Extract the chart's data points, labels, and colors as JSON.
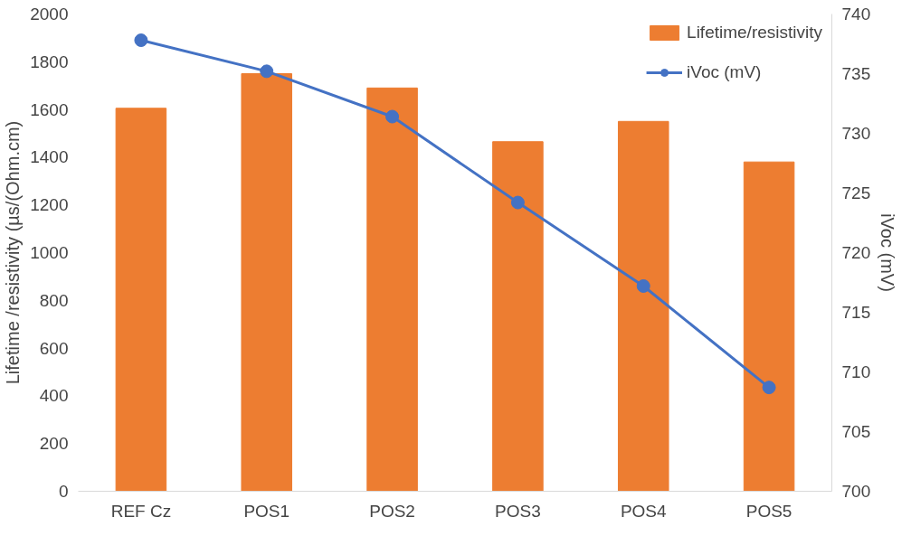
{
  "chart_data": {
    "type": "bar",
    "categories": [
      "REF Cz",
      "POS1",
      "POS2",
      "POS3",
      "POS4",
      "POS5"
    ],
    "ylabel": "Lifetime /resistivity (µs/(Ohm.cm)",
    "y2label": "iVoc (mV)",
    "series": [
      {
        "name": "Lifetime/resistivity",
        "color": "#ed7d31",
        "values": [
          1605,
          1750,
          1690,
          1465,
          1550,
          1380
        ]
      },
      {
        "name": "iVoc (mV)",
        "type": "line",
        "axis": "y2",
        "color": "#4472c4",
        "marker": "circle",
        "values": [
          737.8,
          735.2,
          731.4,
          724.2,
          717.2,
          708.7
        ]
      }
    ],
    "ylim": [
      0,
      2000
    ],
    "yticks": [
      0,
      200,
      400,
      600,
      800,
      1000,
      1200,
      1400,
      1600,
      1800,
      2000
    ],
    "y2lim": [
      700,
      740
    ],
    "y2ticks": [
      700,
      705,
      710,
      715,
      720,
      725,
      730,
      735,
      740
    ],
    "grid": false,
    "legend": "top right"
  }
}
